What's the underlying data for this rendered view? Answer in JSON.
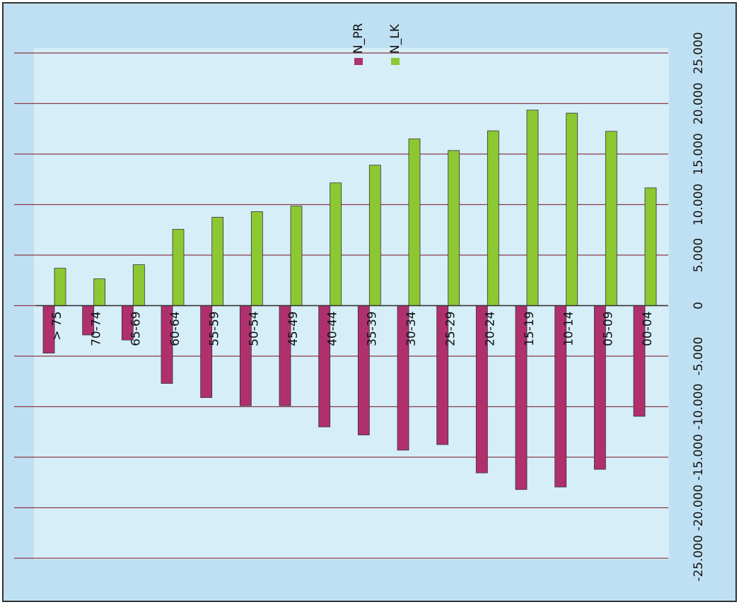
{
  "chart_data": {
    "type": "bar",
    "categories": [
      "> 75",
      "70-74",
      "65-69",
      "60-64",
      "55-59",
      "50-54",
      "45-49",
      "40-44",
      "35-39",
      "30-34",
      "25-29",
      "20-24",
      "15-19",
      "10-14",
      "05-09",
      "00-04"
    ],
    "series": [
      {
        "name": "N_PR",
        "color": "#b0306e",
        "values": [
          -4700,
          -2900,
          -3400,
          -7700,
          -9100,
          -9900,
          -9900,
          -12000,
          -12800,
          -14300,
          -13750,
          -16550,
          -18200,
          -17950,
          -16200,
          -10950
        ]
      },
      {
        "name": "N_LK",
        "color": "#8cc832",
        "values": [
          3700,
          2650,
          4050,
          7550,
          8750,
          9300,
          9850,
          12150,
          13900,
          16500,
          15350,
          17300,
          19350,
          19050,
          17250,
          11650
        ]
      }
    ],
    "ylim": [
      -25000,
      25000
    ],
    "yticks": [
      {
        "value": -25000,
        "label": "-25.000"
      },
      {
        "value": -20000,
        "label": "-20.000"
      },
      {
        "value": -15000,
        "label": "-15.000"
      },
      {
        "value": -10000,
        "label": "-10.000"
      },
      {
        "value": -5000,
        "label": "-5.000"
      },
      0,
      {
        "value": 5000,
        "label": "5.000"
      },
      {
        "value": 10000,
        "label": "10.000"
      },
      {
        "value": 15000,
        "label": "15.000"
      },
      {
        "value": 20000,
        "label": "20.000"
      },
      {
        "value": 25000,
        "label": "25.000"
      }
    ],
    "grid": true
  }
}
